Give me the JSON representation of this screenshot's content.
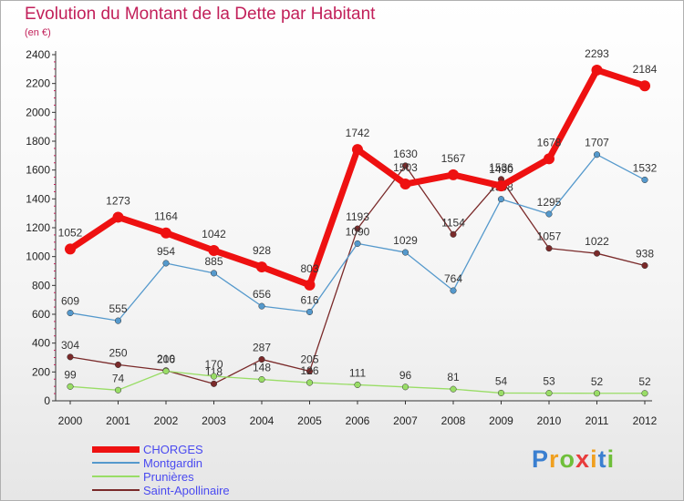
{
  "title": "Evolution du Montant de la Dette par Habitant",
  "subtitle": "(en €)",
  "brand": {
    "letters": [
      "P",
      "r",
      "o",
      "x",
      "i",
      "t",
      "i"
    ],
    "colors": [
      "#3a7fd0",
      "#f0a020",
      "#6fbf3a",
      "#e83c3c",
      "#f0a020",
      "#3a7fd0",
      "#6fbf3a"
    ]
  },
  "chart_data": {
    "type": "line",
    "title": "Evolution du Montant de la Dette par Habitant",
    "ylabel": "(en €)",
    "x": [
      "2000",
      "2001",
      "2002",
      "2003",
      "2004",
      "2005",
      "2006",
      "2007",
      "2008",
      "2009",
      "2010",
      "2011",
      "2012"
    ],
    "ylim": [
      0,
      2400
    ],
    "yticks": [
      0,
      200,
      400,
      600,
      800,
      1000,
      1200,
      1400,
      1600,
      1800,
      2000,
      2200,
      2400
    ],
    "grid": false,
    "legend_position": "bottom-left",
    "series": [
      {
        "name": "CHORGES",
        "color": "#ee1111",
        "values": [
          1052,
          1273,
          1164,
          1042,
          928,
          803,
          1742,
          1503,
          1567,
          1490,
          1678,
          2293,
          2184
        ]
      },
      {
        "name": "Montgardin",
        "color": "#5599cc",
        "values": [
          609,
          555,
          954,
          885,
          656,
          616,
          1090,
          1029,
          764,
          1398,
          1295,
          1707,
          1532
        ]
      },
      {
        "name": "Prunières",
        "color": "#99dd66",
        "values": [
          99,
          74,
          206,
          170,
          148,
          126,
          111,
          96,
          81,
          54,
          53,
          52,
          52
        ]
      },
      {
        "name": "Saint-Apollinaire",
        "color": "#7a2a2a",
        "values": [
          304,
          250,
          210,
          118,
          287,
          205,
          1193,
          1630,
          1154,
          1536,
          1057,
          1022,
          938
        ]
      }
    ]
  }
}
